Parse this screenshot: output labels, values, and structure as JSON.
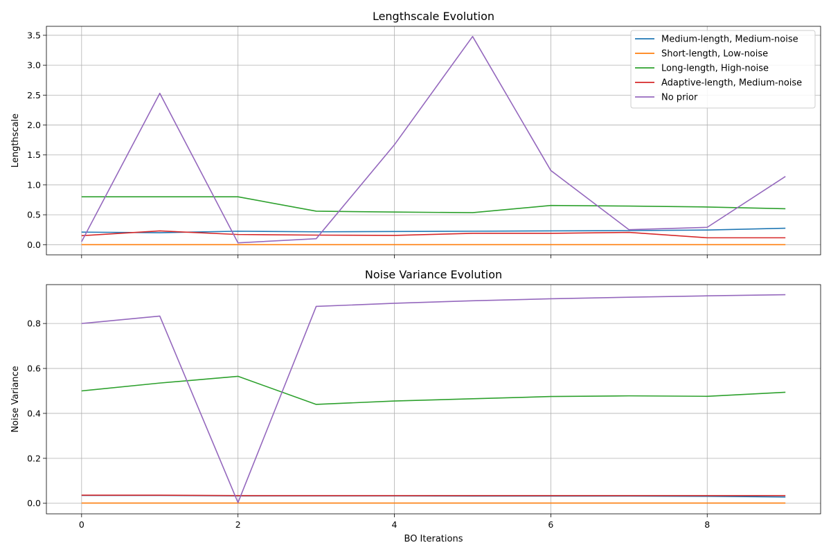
{
  "chart_data": [
    {
      "type": "line",
      "title": "Lengthscale Evolution",
      "xlabel": "",
      "ylabel": "Lengthscale",
      "x": [
        0,
        1,
        2,
        3,
        4,
        5,
        6,
        7,
        8,
        9
      ],
      "xlim": [
        -0.45,
        9.45
      ],
      "ylim": [
        -0.17,
        3.65
      ],
      "xticks": [
        0,
        2,
        4,
        6,
        8
      ],
      "yticks": [
        0.0,
        0.5,
        1.0,
        1.5,
        2.0,
        2.5,
        3.0,
        3.5
      ],
      "ytick_labels": [
        "0.0",
        "0.5",
        "1.0",
        "1.5",
        "2.0",
        "2.5",
        "3.0",
        "3.5"
      ],
      "show_xtick_labels": false,
      "grid": true,
      "legend": "top-right",
      "series": [
        {
          "name": "Medium-length, Medium-noise",
          "color": "#1f77b4",
          "values": [
            0.21,
            0.2,
            0.225,
            0.215,
            0.22,
            0.225,
            0.23,
            0.235,
            0.245,
            0.275
          ]
        },
        {
          "name": "Short-length, Low-noise",
          "color": "#ff7f0e",
          "values": [
            0.0,
            0.0,
            0.0,
            0.0,
            0.0,
            0.0,
            0.0,
            0.0,
            0.0,
            0.0
          ]
        },
        {
          "name": "Long-length, High-noise",
          "color": "#2ca02c",
          "values": [
            0.8,
            0.8,
            0.8,
            0.56,
            0.545,
            0.535,
            0.655,
            0.645,
            0.63,
            0.6
          ]
        },
        {
          "name": "Adaptive-length, Medium-noise",
          "color": "#d62728",
          "values": [
            0.15,
            0.23,
            0.17,
            0.16,
            0.155,
            0.19,
            0.19,
            0.205,
            0.115,
            0.115
          ]
        },
        {
          "name": "No prior",
          "color": "#9467bd",
          "values": [
            0.05,
            2.53,
            0.03,
            0.1,
            1.67,
            3.48,
            1.24,
            0.25,
            0.29,
            1.14
          ]
        }
      ]
    },
    {
      "type": "line",
      "title": "Noise Variance Evolution",
      "xlabel": "BO Iterations",
      "ylabel": "Noise Variance",
      "x": [
        0,
        1,
        2,
        3,
        4,
        5,
        6,
        7,
        8,
        9
      ],
      "xlim": [
        -0.45,
        9.45
      ],
      "ylim": [
        -0.047,
        0.973
      ],
      "xticks": [
        0,
        2,
        4,
        6,
        8
      ],
      "xtick_labels": [
        "0",
        "2",
        "4",
        "6",
        "8"
      ],
      "yticks": [
        0.0,
        0.2,
        0.4,
        0.6,
        0.8
      ],
      "ytick_labels": [
        "0.0",
        "0.2",
        "0.4",
        "0.6",
        "0.8"
      ],
      "show_xtick_labels": true,
      "grid": true,
      "series": [
        {
          "name": "Medium-length, Medium-noise",
          "color": "#1f77b4",
          "values": [
            0.035,
            0.035,
            0.033,
            0.033,
            0.033,
            0.032,
            0.032,
            0.032,
            0.031,
            0.028
          ]
        },
        {
          "name": "Short-length, Low-noise",
          "color": "#ff7f0e",
          "values": [
            0.001,
            0.001,
            0.001,
            0.001,
            0.001,
            0.001,
            0.001,
            0.001,
            0.001,
            0.001
          ]
        },
        {
          "name": "Long-length, High-noise",
          "color": "#2ca02c",
          "values": [
            0.5,
            0.535,
            0.565,
            0.44,
            0.455,
            0.465,
            0.475,
            0.478,
            0.476,
            0.494
          ]
        },
        {
          "name": "Adaptive-length, Medium-noise",
          "color": "#d62728",
          "values": [
            0.036,
            0.036,
            0.034,
            0.034,
            0.034,
            0.034,
            0.034,
            0.034,
            0.034,
            0.034
          ]
        },
        {
          "name": "No prior",
          "color": "#9467bd",
          "values": [
            0.8,
            0.833,
            0.003,
            0.876,
            0.89,
            0.901,
            0.91,
            0.917,
            0.923,
            0.928
          ]
        }
      ]
    }
  ]
}
